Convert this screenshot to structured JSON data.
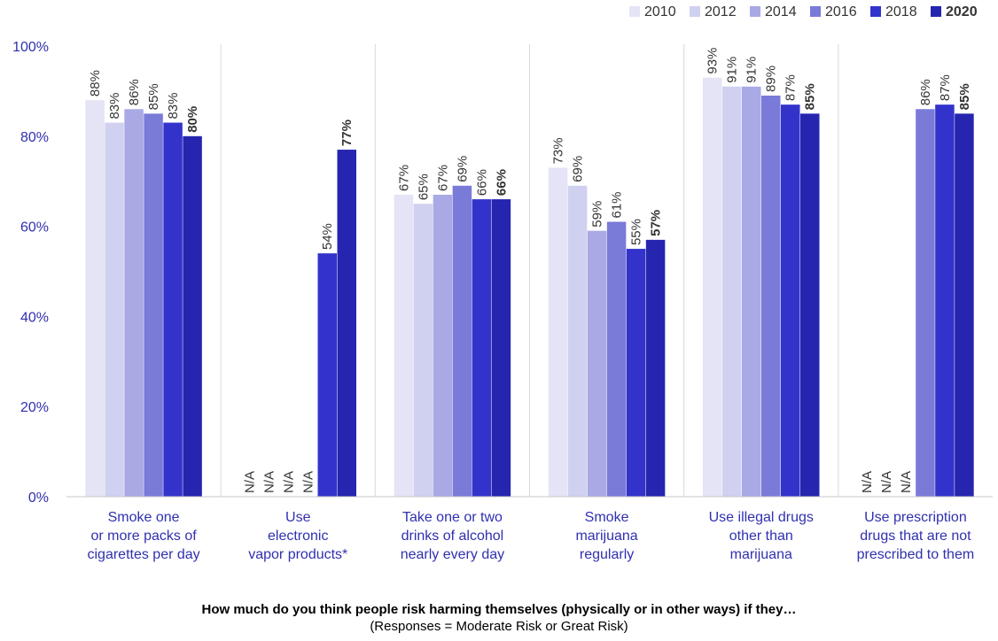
{
  "chart_data": {
    "type": "bar",
    "categories": [
      [
        "Smoke one",
        "or more packs of",
        "cigarettes per day"
      ],
      [
        "Use",
        "electronic",
        "vapor products*"
      ],
      [
        "Take one or two",
        "drinks of alcohol",
        "nearly every day"
      ],
      [
        "Smoke",
        "marijuana",
        "regularly"
      ],
      [
        "Use illegal drugs",
        "other than",
        "marijuana"
      ],
      [
        "Use prescription",
        "drugs that are not",
        "prescribed to them"
      ]
    ],
    "series": [
      {
        "name": "2010",
        "color": "#e4e4f6",
        "values": [
          88,
          null,
          67,
          73,
          93,
          null
        ],
        "labels": [
          "88%",
          "N/A",
          "67%",
          "73%",
          "93%",
          "N/A"
        ]
      },
      {
        "name": "2012",
        "color": "#d0d0f0",
        "values": [
          83,
          null,
          65,
          69,
          91,
          null
        ],
        "labels": [
          "83%",
          "N/A",
          "65%",
          "69%",
          "91%",
          "N/A"
        ]
      },
      {
        "name": "2014",
        "color": "#a9a9e6",
        "values": [
          86,
          null,
          67,
          59,
          91,
          null
        ],
        "labels": [
          "86%",
          "N/A",
          "67%",
          "59%",
          "91%",
          "N/A"
        ]
      },
      {
        "name": "2016",
        "color": "#7a7ad9",
        "values": [
          85,
          null,
          69,
          61,
          89,
          86
        ],
        "labels": [
          "85%",
          "N/A",
          "69%",
          "61%",
          "89%",
          "86%"
        ]
      },
      {
        "name": "2018",
        "color": "#3333cc",
        "values": [
          83,
          54,
          66,
          55,
          87,
          87
        ],
        "labels": [
          "83%",
          "54%",
          "66%",
          "55%",
          "87%",
          "87%"
        ]
      },
      {
        "name": "2020",
        "color": "#2525b0",
        "bold": true,
        "values": [
          80,
          77,
          66,
          57,
          85,
          85
        ],
        "labels": [
          "80%",
          "77%",
          "66%",
          "57%",
          "85%",
          "85%"
        ]
      }
    ],
    "yticks": [
      "0%",
      "20%",
      "40%",
      "60%",
      "80%",
      "100%"
    ],
    "ylim": [
      0,
      100
    ],
    "legend": "top-right",
    "title": "",
    "xlabel": "",
    "ylabel": ""
  },
  "caption": {
    "main": "How much do you think people risk harming themselves (physically or in other ways) if they…",
    "sub": "(Responses = Moderate Risk or Great Risk)"
  }
}
